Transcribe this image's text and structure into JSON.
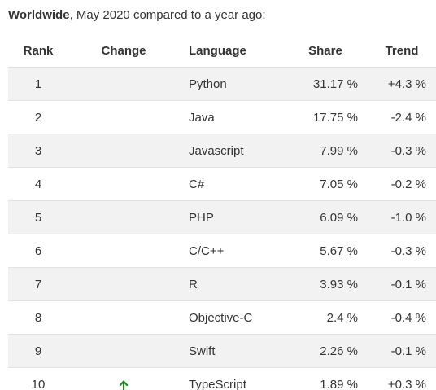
{
  "heading": {
    "bold": "Worldwide",
    "rest": ", May 2020 compared to a year ago:"
  },
  "table": {
    "headers": {
      "rank": "Rank",
      "change": "Change",
      "language": "Language",
      "share": "Share",
      "trend": "Trend"
    },
    "rows": [
      {
        "rank": "1",
        "change": "",
        "language": "Python",
        "share": "31.17 %",
        "trend": "+4.3 %"
      },
      {
        "rank": "2",
        "change": "",
        "language": "Java",
        "share": "17.75 %",
        "trend": "-2.4 %"
      },
      {
        "rank": "3",
        "change": "",
        "language": "Javascript",
        "share": "7.99 %",
        "trend": "-0.3 %"
      },
      {
        "rank": "4",
        "change": "",
        "language": "C#",
        "share": "7.05 %",
        "trend": "-0.2 %"
      },
      {
        "rank": "5",
        "change": "",
        "language": "PHP",
        "share": "6.09 %",
        "trend": "-1.0 %"
      },
      {
        "rank": "6",
        "change": "",
        "language": "C/C++",
        "share": "5.67 %",
        "trend": "-0.3 %"
      },
      {
        "rank": "7",
        "change": "",
        "language": "R",
        "share": "3.93 %",
        "trend": "-0.1 %"
      },
      {
        "rank": "8",
        "change": "",
        "language": "Objective-C",
        "share": "2.4 %",
        "trend": "-0.4 %"
      },
      {
        "rank": "9",
        "change": "",
        "language": "Swift",
        "share": "2.26 %",
        "trend": "-0.1 %"
      },
      {
        "rank": "10",
        "change": "up-arrow-icon",
        "language": "TypeScript",
        "share": "1.89 %",
        "trend": "+0.3 %"
      }
    ]
  },
  "colors": {
    "up_arrow": "#1a8a1a",
    "row_stripe": "#f2f2f2"
  }
}
